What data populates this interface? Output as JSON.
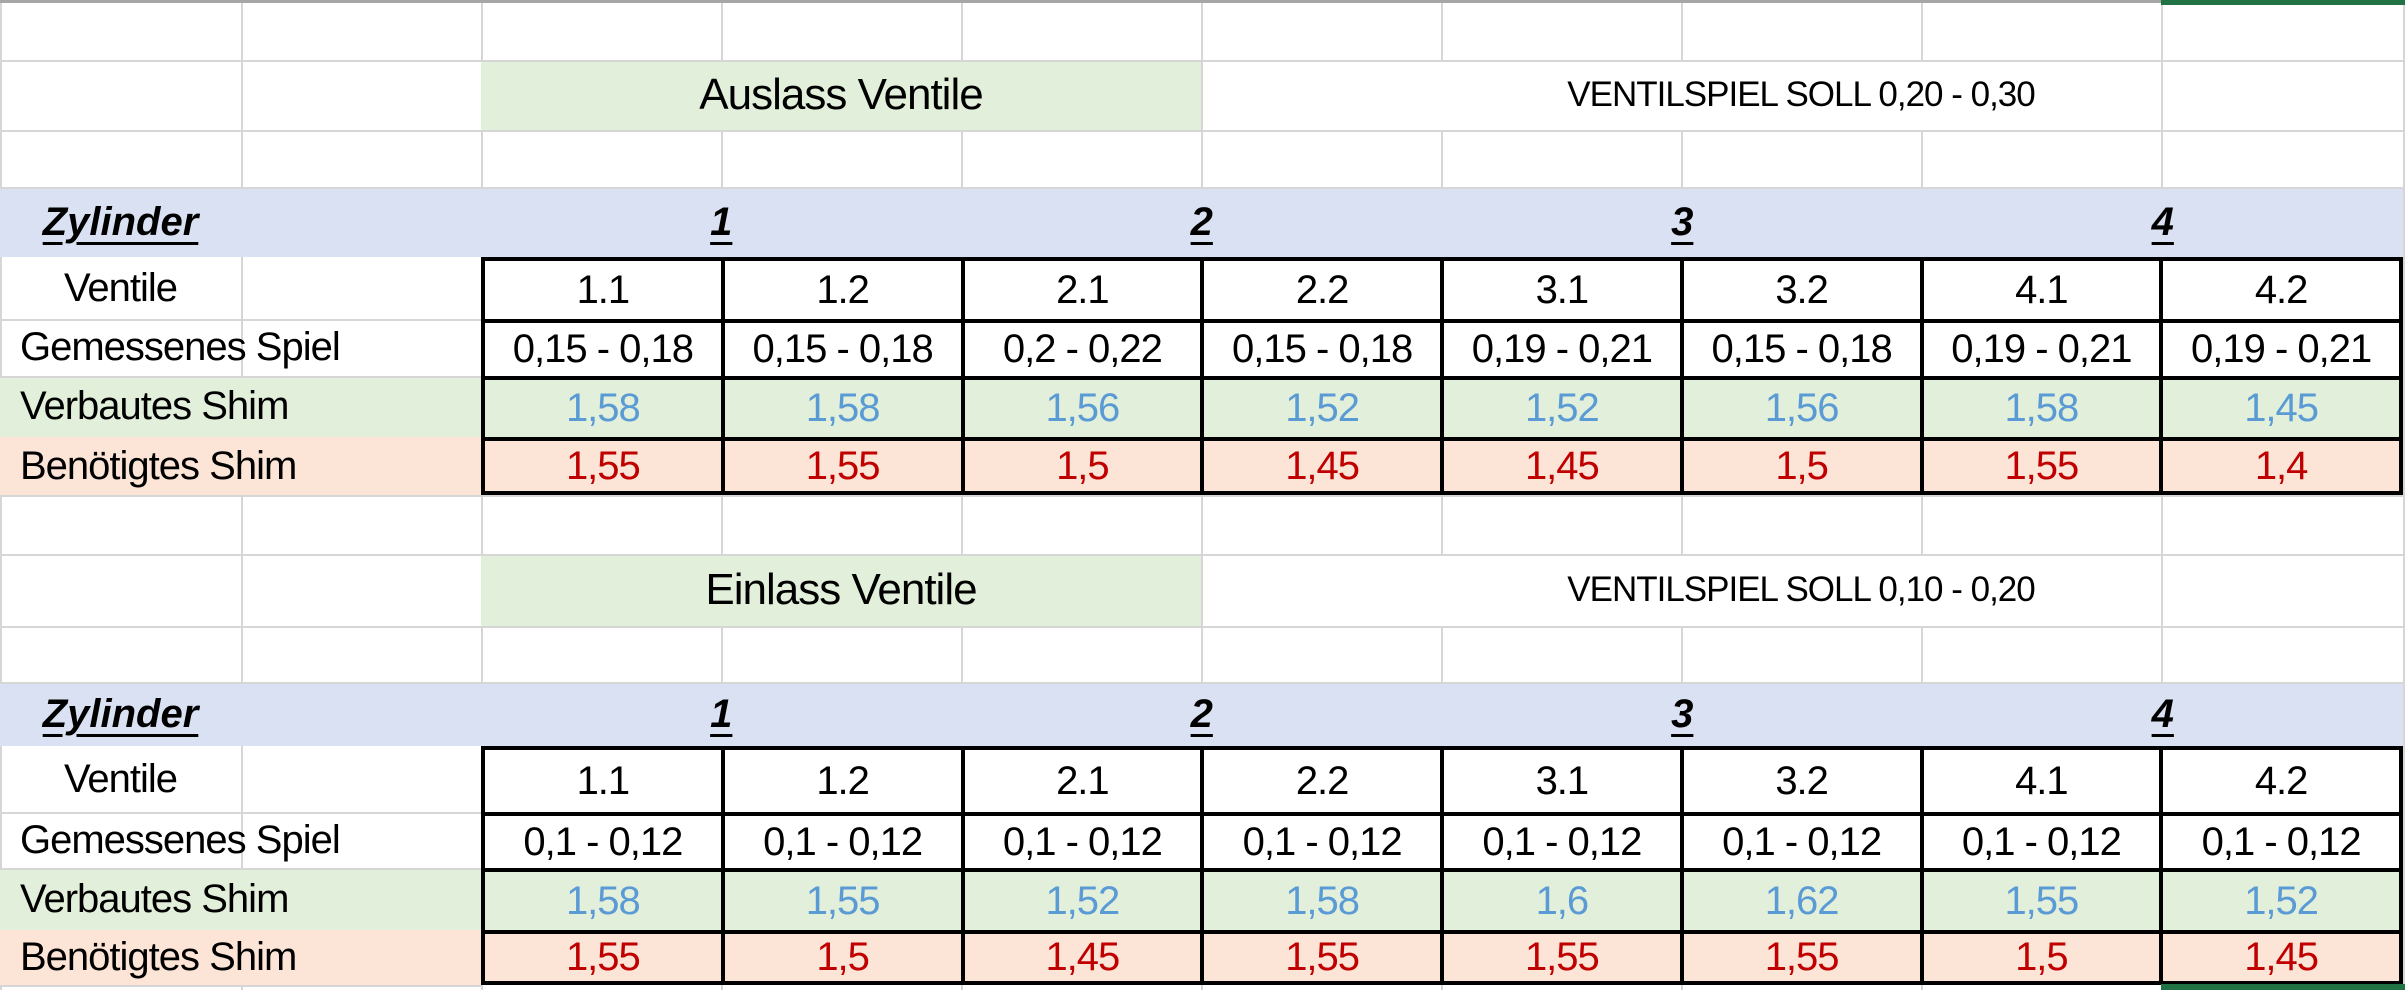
{
  "colors": {
    "header_fill": "#d9e1f2",
    "section_fill": "#e2efda",
    "installed_fill": "#e2efda",
    "required_fill": "#fce4d6",
    "installed_text": "#5b9bd5",
    "required_text": "#c00000",
    "selection_green": "#217346",
    "gridline": "#d6d6d6"
  },
  "zylinder_label": "Zylinder",
  "cylinders": [
    "1",
    "2",
    "3",
    "4"
  ],
  "row_labels": {
    "ventile": "Ventile",
    "gemessenes": "Gemessenes Spiel",
    "verbautes": "Verbautes Shim",
    "benoetigtes": "Benötigtes Shim"
  },
  "auslass": {
    "title": "Auslass Ventile",
    "target": "VENTILSPIEL SOLL 0,20 - 0,30",
    "ventile": [
      "1.1",
      "1.2",
      "2.1",
      "2.2",
      "3.1",
      "3.2",
      "4.1",
      "4.2"
    ],
    "gemessenes": [
      "0,15 - 0,18",
      "0,15 - 0,18",
      "0,2 - 0,22",
      "0,15 - 0,18",
      "0,19 - 0,21",
      "0,15 - 0,18",
      "0,19 - 0,21",
      "0,19 - 0,21"
    ],
    "verbautes": [
      "1,58",
      "1,58",
      "1,56",
      "1,52",
      "1,52",
      "1,56",
      "1,58",
      "1,45"
    ],
    "benoetigtes": [
      "1,55",
      "1,55",
      "1,5",
      "1,45",
      "1,45",
      "1,5",
      "1,55",
      "1,4"
    ]
  },
  "einlass": {
    "title": "Einlass Ventile",
    "target": "VENTILSPIEL SOLL 0,10 - 0,20",
    "ventile": [
      "1.1",
      "1.2",
      "2.1",
      "2.2",
      "3.1",
      "3.2",
      "4.1",
      "4.2"
    ],
    "gemessenes": [
      "0,1 - 0,12",
      "0,1 - 0,12",
      "0,1 - 0,12",
      "0,1 - 0,12",
      "0,1 - 0,12",
      "0,1 - 0,12",
      "0,1 - 0,12",
      "0,1 - 0,12"
    ],
    "verbautes": [
      "1,58",
      "1,55",
      "1,52",
      "1,58",
      "1,6",
      "1,62",
      "1,55",
      "1,52"
    ],
    "benoetigtes": [
      "1,55",
      "1,5",
      "1,45",
      "1,55",
      "1,55",
      "1,55",
      "1,5",
      "1,45"
    ]
  }
}
